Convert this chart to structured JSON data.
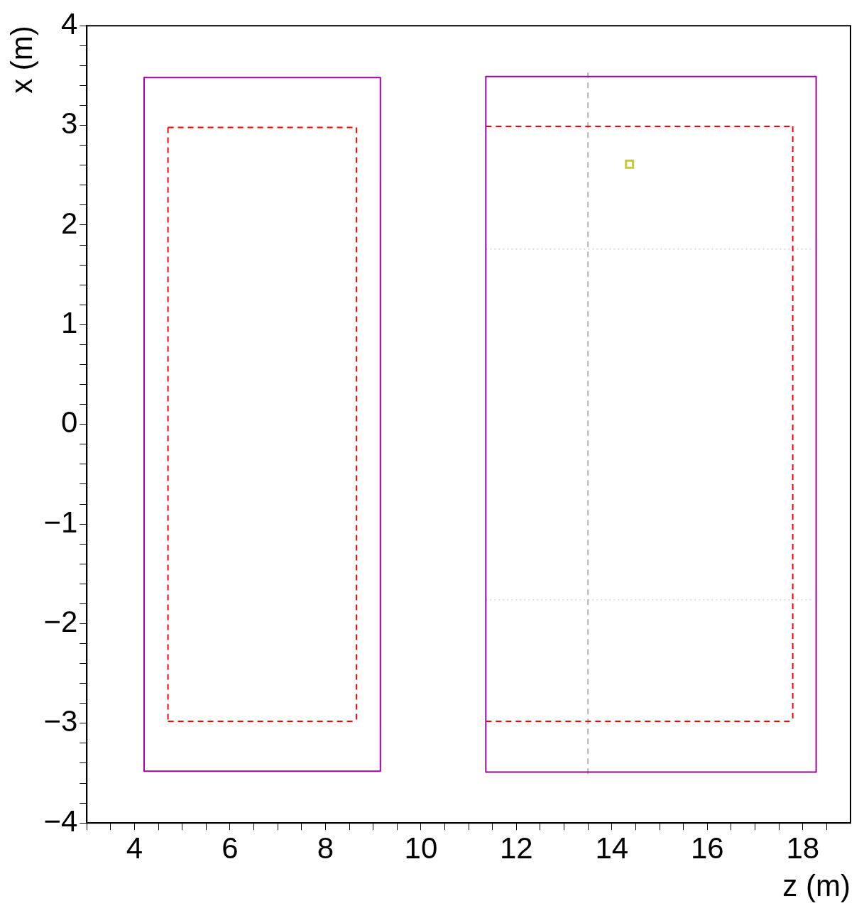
{
  "chart_data": {
    "type": "scatter",
    "xlabel": "z (m)",
    "ylabel": "x (m)",
    "xlim": [
      3,
      19
    ],
    "xticks": [
      {
        "value": 3,
        "label": null
      },
      {
        "value": 3.5,
        "label": null
      },
      4,
      {
        "value": 4.5,
        "label": null
      },
      {
        "value": 5,
        "label": null
      },
      {
        "value": 5.5,
        "label": null
      },
      6,
      {
        "value": 6.5,
        "label": null
      },
      {
        "value": 7,
        "label": null
      },
      {
        "value": 7.5,
        "label": null
      },
      8,
      {
        "value": 8.5,
        "label": null
      },
      {
        "value": 9,
        "label": null
      },
      {
        "value": 9.5,
        "label": null
      },
      10,
      {
        "value": 10.5,
        "label": null
      },
      {
        "value": 11,
        "label": null
      },
      {
        "value": 11.5,
        "label": null
      },
      12,
      {
        "value": 12.5,
        "label": null
      },
      {
        "value": 13,
        "label": null
      },
      {
        "value": 13.5,
        "label": null
      },
      14,
      {
        "value": 14.5,
        "label": null
      },
      {
        "value": 15,
        "label": null
      },
      {
        "value": 15.5,
        "label": null
      },
      16,
      {
        "value": 16.5,
        "label": null
      },
      {
        "value": 17,
        "label": null
      },
      {
        "value": 17.5,
        "label": null
      },
      18,
      {
        "value": 18.5,
        "label": null
      }
    ],
    "ylim": [
      -4,
      4
    ],
    "yticks": [
      -4,
      {
        "value": -3.8,
        "label": null
      },
      {
        "value": -3.6,
        "label": null
      },
      {
        "value": -3.4,
        "label": null
      },
      {
        "value": -3.2,
        "label": null
      },
      -3,
      {
        "value": -2.8,
        "label": null
      },
      {
        "value": -2.6,
        "label": null
      },
      {
        "value": -2.4,
        "label": null
      },
      {
        "value": -2.2,
        "label": null
      },
      -2,
      {
        "value": -1.8,
        "label": null
      },
      {
        "value": -1.6,
        "label": null
      },
      {
        "value": -1.4,
        "label": null
      },
      {
        "value": -1.2,
        "label": null
      },
      -1,
      {
        "value": -0.8,
        "label": null
      },
      {
        "value": -0.6,
        "label": null
      },
      {
        "value": -0.4,
        "label": null
      },
      {
        "value": -0.2,
        "label": null
      },
      0,
      {
        "value": 0.2,
        "label": null
      },
      {
        "value": 0.4,
        "label": null
      },
      {
        "value": 0.6,
        "label": null
      },
      {
        "value": 0.8,
        "label": null
      },
      1,
      {
        "value": 1.2,
        "label": null
      },
      {
        "value": 1.4,
        "label": null
      },
      {
        "value": 1.6,
        "label": null
      },
      {
        "value": 1.8,
        "label": null
      },
      2,
      {
        "value": 2.2,
        "label": null
      },
      {
        "value": 2.4,
        "label": null
      },
      {
        "value": 2.6,
        "label": null
      },
      {
        "value": 2.8,
        "label": null
      },
      3,
      {
        "value": 3.2,
        "label": null
      },
      {
        "value": 3.4,
        "label": null
      },
      {
        "value": 3.6,
        "label": null
      },
      {
        "value": 3.8,
        "label": null
      },
      4
    ],
    "grid": false,
    "legend": false,
    "series": [
      {
        "type": "line",
        "color": "#a000a0",
        "line_style": "solid",
        "marker": "none",
        "x": [
          4.2,
          9.15
        ],
        "values": [
          3.48,
          3.48
        ]
      },
      {
        "type": "line",
        "color": "#a000a0",
        "line_style": "solid",
        "marker": "none",
        "x": [
          4.2,
          9.15
        ],
        "values": [
          -3.48,
          -3.48
        ]
      },
      {
        "type": "line",
        "color": "#a000a0",
        "line_style": "solid",
        "marker": "none",
        "x": [
          4.2,
          4.2
        ],
        "values": [
          3.48,
          -3.48
        ]
      },
      {
        "type": "line",
        "color": "#a000a0",
        "line_style": "solid",
        "marker": "none",
        "x": [
          9.15,
          9.15
        ],
        "values": [
          3.48,
          -3.48
        ]
      },
      {
        "type": "line",
        "color": "#ff0000",
        "line_style": "dashed",
        "marker": "none",
        "x": [
          4.7,
          8.65
        ],
        "values": [
          2.98,
          2.98
        ]
      },
      {
        "type": "line",
        "color": "#ff0000",
        "line_style": "dashed",
        "marker": "none",
        "x": [
          4.7,
          8.65
        ],
        "values": [
          -2.98,
          -2.98
        ]
      },
      {
        "type": "line",
        "color": "#ff0000",
        "line_style": "dashed",
        "marker": "none",
        "x": [
          4.7,
          4.7
        ],
        "values": [
          2.98,
          -2.98
        ]
      },
      {
        "type": "line",
        "color": "#ff0000",
        "line_style": "dashed",
        "marker": "none",
        "x": [
          8.65,
          8.65
        ],
        "values": [
          2.98,
          -2.98
        ]
      },
      {
        "type": "line",
        "color": "#a000a0",
        "line_style": "solid",
        "marker": "none",
        "x": [
          11.36,
          18.28
        ],
        "values": [
          3.49,
          3.49
        ]
      },
      {
        "type": "line",
        "color": "#a000a0",
        "line_style": "solid",
        "marker": "none",
        "x": [
          11.36,
          18.28
        ],
        "values": [
          -3.49,
          -3.49
        ]
      },
      {
        "type": "line",
        "color": "#a000a0",
        "line_style": "solid",
        "marker": "none",
        "x": [
          11.36,
          11.36
        ],
        "values": [
          3.49,
          -3.49
        ]
      },
      {
        "type": "line",
        "color": "#a000a0",
        "line_style": "solid",
        "marker": "none",
        "x": [
          18.28,
          18.28
        ],
        "values": [
          3.49,
          -3.49
        ]
      },
      {
        "type": "line",
        "color": "#ff0000",
        "line_style": "dashed",
        "marker": "none",
        "x": [
          11.36,
          17.79
        ],
        "values": [
          2.99,
          2.99
        ]
      },
      {
        "type": "line",
        "color": "#ff0000",
        "line_style": "dashed",
        "marker": "none",
        "x": [
          11.36,
          17.79
        ],
        "values": [
          -2.98,
          -2.98
        ]
      },
      {
        "type": "line",
        "color": "#ff0000",
        "line_style": "dashed",
        "marker": "none",
        "x": [
          17.79,
          17.79
        ],
        "values": [
          2.99,
          -2.98
        ]
      },
      {
        "type": "line",
        "color": "#b4b4b4",
        "line_style": "dashed",
        "marker": "none",
        "x": [
          13.5,
          13.5
        ],
        "values": [
          3.53,
          -3.51
        ]
      },
      {
        "type": "line",
        "color": "#dcdcdc",
        "line_style": "dotted",
        "marker": "none",
        "x": [
          11.36,
          18.2
        ],
        "values": [
          1.76,
          1.76
        ]
      },
      {
        "type": "line",
        "color": "#dcdcdc",
        "line_style": "dotted",
        "marker": "none",
        "x": [
          11.36,
          18.2
        ],
        "values": [
          -1.76,
          -1.76
        ]
      },
      {
        "type": "scatter",
        "color": "#c8c832",
        "marker": "square",
        "x": [
          14.37
        ],
        "values": [
          2.61
        ]
      }
    ]
  }
}
